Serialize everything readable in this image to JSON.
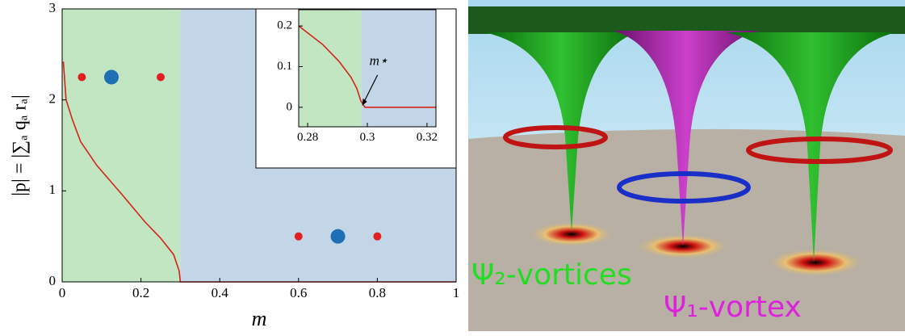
{
  "chart_data": [
    {
      "type": "line",
      "xlabel": "m",
      "ylabel": "|p| = |∑ₐ qₐ rₐ|",
      "x": [
        0.003,
        0.01,
        0.027,
        0.047,
        0.088,
        0.15,
        0.21,
        0.25,
        0.283,
        0.297,
        0.3,
        1
      ],
      "values": [
        2.42,
        2.0,
        1.77,
        1.54,
        1.28,
        0.97,
        0.66,
        0.48,
        0.3,
        0.12,
        0,
        0
      ],
      "color": "#d62418",
      "xlim": [
        0,
        1
      ],
      "ylim": [
        0,
        3
      ],
      "xticks": [
        0,
        0.2,
        0.4,
        0.6,
        0.8,
        1
      ],
      "yticks": [
        0,
        1,
        2,
        3
      ],
      "regions": [
        {
          "xlim": [
            0,
            0.3
          ],
          "color": "#c2e5c2"
        },
        {
          "xlim": [
            0.3,
            1
          ],
          "color": "#c2d6e8"
        }
      ],
      "grid": false
    },
    {
      "type": "line",
      "x": [
        0.277,
        0.2851,
        0.2905,
        0.2946,
        0.2965,
        0.2978,
        0.2992,
        0.323
      ],
      "values": [
        0.2,
        0.154,
        0.113,
        0.073,
        0.046,
        0.016,
        0,
        0
      ],
      "color": "#d62418",
      "xlim": [
        0.277,
        0.323
      ],
      "ylim": [
        -0.048,
        0.24
      ],
      "xticks": [
        0.28,
        0.3,
        0.32
      ],
      "yticks": [
        0,
        0.1,
        0.2
      ],
      "regions": [
        {
          "xlim": [
            0.277,
            0.298
          ],
          "color": "#c2e5c2"
        },
        {
          "xlim": [
            0.298,
            0.323
          ],
          "color": "#c2d6e8"
        }
      ],
      "annotations": [
        {
          "text": "m⋆",
          "x": 0.298,
          "y": 0
        }
      ],
      "grid": false
    }
  ],
  "illustration": {
    "labels": [
      {
        "text": "Ψ₂-vortices",
        "color": "#22dd22"
      },
      {
        "text": "Ψ₁-vortex",
        "color": "#dd22dd"
      }
    ]
  }
}
